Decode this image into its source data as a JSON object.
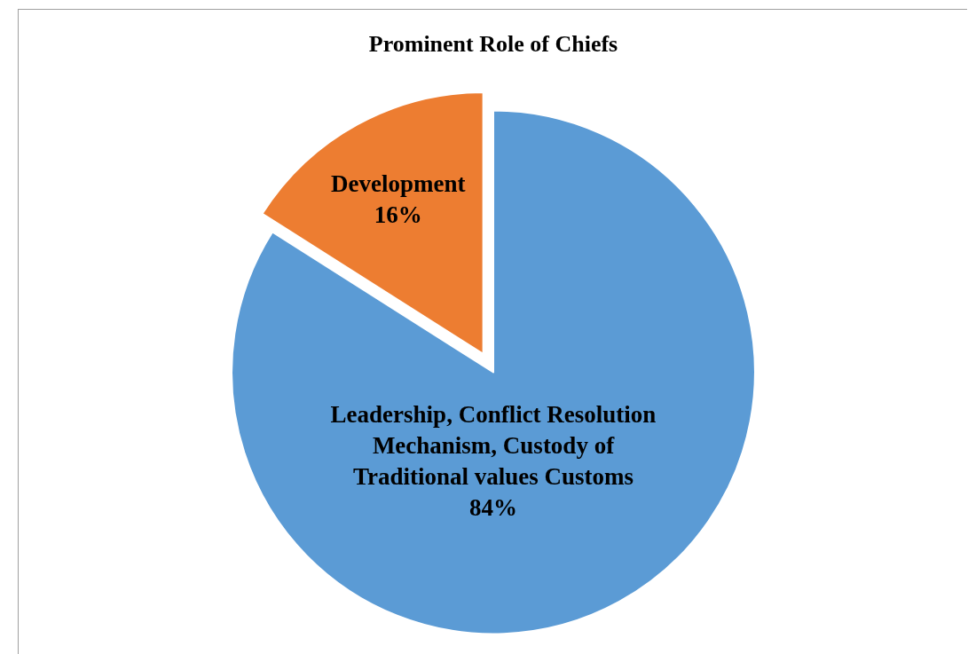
{
  "chart_data": {
    "type": "pie",
    "title": "Prominent Role of Chiefs",
    "categories": [
      "Leadership, Conflict Resolution Mechanism, Custody of Traditional values Customs",
      "Development"
    ],
    "values": [
      84,
      16
    ],
    "colors": [
      "#5b9bd5",
      "#ed7d31"
    ],
    "value_labels": [
      "84%",
      "16%"
    ],
    "legend": false
  }
}
